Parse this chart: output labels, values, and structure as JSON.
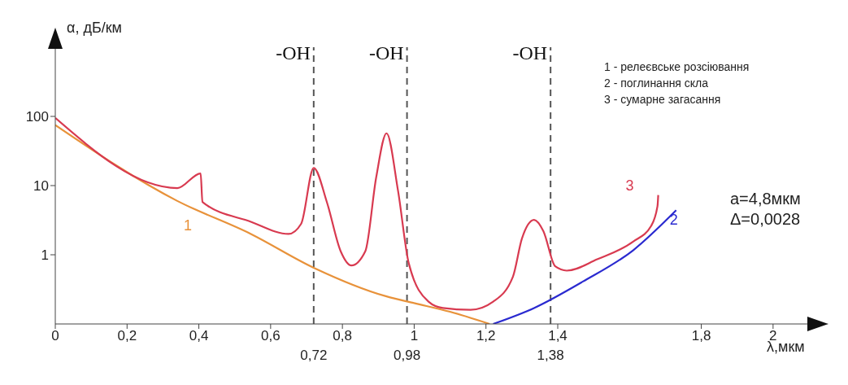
{
  "chart_data": {
    "type": "line",
    "xlabel": "λ,мкм",
    "ylabel": "α, дБ/км",
    "xlim": [
      0,
      2.1
    ],
    "ylim": [
      0.1,
      1000
    ],
    "log": "y",
    "legend": false,
    "marker": "none",
    "line_style": "solid",
    "xticks": [
      0,
      {
        "value": 0.2,
        "label": "0,2"
      },
      {
        "value": 0.4,
        "label": "0,4"
      },
      {
        "value": 0.6,
        "label": "0,6"
      },
      {
        "value": 0.8,
        "label": "0,8"
      },
      1,
      {
        "value": 1.2,
        "label": "1,2"
      },
      {
        "value": 1.4,
        "label": "1,4"
      },
      {
        "value": 1.8,
        "label": "1,8"
      },
      2
    ],
    "yticks": [
      1,
      10,
      100
    ],
    "series": [
      {
        "name": "1",
        "color": "#e8923a",
        "x": [
          0,
          0.34,
          0.545,
          0.72,
          0.923,
          1.0,
          1.1,
          1.21
        ],
        "values": [
          75,
          6,
          2,
          0.65,
          0.25,
          0.2,
          0.15,
          0.1
        ]
      },
      {
        "name": "2",
        "color": "#2a2ad0",
        "x": [
          1.22,
          1.334,
          1.47,
          1.61,
          1.73
        ],
        "values": [
          0.1,
          0.17,
          0.41,
          1.16,
          4.4
        ]
      },
      {
        "name": "3",
        "color": "#d83a50",
        "x": [
          0,
          0.34,
          0.405,
          0.41,
          0.545,
          0.65,
          0.685,
          0.72,
          0.757,
          0.795,
          0.825,
          0.864,
          0.894,
          0.923,
          0.955,
          0.985,
          1.04,
          1.08,
          1.157,
          1.22,
          1.275,
          1.3,
          1.334,
          1.36,
          1.393,
          1.425,
          1.51,
          1.61,
          1.66,
          1.678,
          1.68
        ],
        "values": [
          95,
          9.2,
          15,
          5.8,
          3,
          2,
          2.8,
          18,
          5.7,
          1.13,
          0.7,
          1.13,
          13,
          57,
          8.4,
          0.75,
          0.21,
          0.17,
          0.16,
          0.21,
          0.48,
          1.7,
          3.2,
          2.2,
          0.68,
          0.59,
          0.86,
          1.55,
          2.6,
          5.1,
          7.3
        ]
      }
    ],
    "ref_lines": [
      {
        "axis": "x",
        "value": 0.72,
        "label": "0,72",
        "line_style": "dashed",
        "color": "#555555"
      },
      {
        "axis": "x",
        "value": 0.98,
        "label": "0,98",
        "line_style": "dashed",
        "color": "#555555"
      },
      {
        "axis": "x",
        "value": 1.38,
        "label": "1,38",
        "line_style": "dashed",
        "color": "#555555"
      }
    ],
    "annotations": [
      "-OH",
      "-OH",
      "-OH",
      "1 - релеєвське розсіювання",
      "2 - поглинання скла",
      "3 - сумарне загасання",
      "a=4,8мкм",
      "Δ=0,0028"
    ]
  }
}
